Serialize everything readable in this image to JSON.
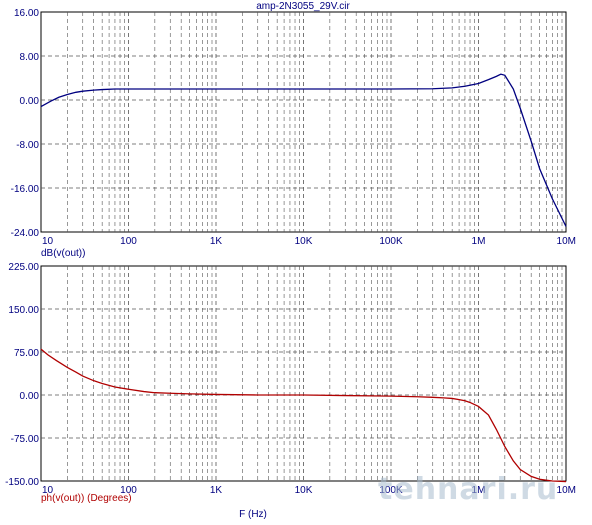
{
  "chart_data": [
    {
      "type": "line",
      "title": "amp-2N3055_29V.cir",
      "ylabel": "dB(v(out))",
      "xlabel": "",
      "x_scale": "log",
      "xlim": [
        10,
        10000000
      ],
      "ylim": [
        -24,
        16
      ],
      "y_ticks": [
        16,
        8,
        0,
        -8,
        -16,
        -24
      ],
      "y_tick_labels": [
        "16.00",
        "8.00",
        "0.00",
        "-8.00",
        "-16.00",
        "-24.00"
      ],
      "x_tick_labels": [
        "10",
        "100",
        "1K",
        "10K",
        "100K",
        "1M",
        "10M"
      ],
      "grid": true,
      "line_color": "#000080",
      "series": [
        {
          "x": [
            10,
            13,
            16,
            20,
            25,
            30,
            40,
            50,
            70,
            100,
            200,
            500,
            1000,
            10000,
            100000,
            300000,
            500000,
            700000,
            1000000,
            1300000,
            1600000,
            1800000,
            2000000,
            2500000,
            3000000,
            4000000,
            5000000,
            7000000,
            10000000
          ],
          "y": [
            -1.2,
            -0.2,
            0.5,
            1.0,
            1.4,
            1.6,
            1.8,
            1.9,
            2.0,
            2.0,
            2.0,
            2.0,
            2.0,
            2.0,
            2.0,
            2.05,
            2.2,
            2.5,
            3.0,
            3.7,
            4.3,
            4.7,
            4.5,
            2.0,
            -1.5,
            -7.5,
            -12.5,
            -18.0,
            -23.0
          ]
        }
      ]
    },
    {
      "type": "line",
      "title": "",
      "ylabel": "ph(v(out)) (Degrees)",
      "xlabel": "F (Hz)",
      "x_scale": "log",
      "xlim": [
        10,
        10000000
      ],
      "ylim": [
        -150,
        225
      ],
      "y_ticks": [
        225,
        150,
        75,
        0,
        -75,
        -150
      ],
      "y_tick_labels": [
        "225.00",
        "150.00",
        "75.00",
        "0.00",
        "-75.00",
        "-150.00"
      ],
      "x_tick_labels": [
        "10",
        "100",
        "1K",
        "10K",
        "100K",
        "1M",
        "10M"
      ],
      "grid": true,
      "line_color": "#b00000",
      "series": [
        {
          "x": [
            10,
            12,
            15,
            20,
            25,
            30,
            40,
            50,
            70,
            100,
            150,
            200,
            300,
            500,
            1000,
            3000,
            10000,
            30000,
            100000,
            200000,
            300000,
            400000,
            500000,
            600000,
            700000,
            800000,
            1000000,
            1300000,
            1600000,
            2000000,
            2500000,
            3000000,
            4000000,
            5000000,
            7000000,
            10000000
          ],
          "y": [
            80,
            70,
            60,
            48,
            40,
            33,
            25,
            20,
            14,
            10,
            6,
            4,
            3,
            2,
            1,
            0,
            0,
            -1,
            -2,
            -3,
            -4,
            -5,
            -6,
            -8,
            -10,
            -13,
            -20,
            -35,
            -60,
            -90,
            -115,
            -130,
            -142,
            -147,
            -150,
            -151
          ]
        }
      ]
    }
  ],
  "watermark": "tehnari.ru"
}
